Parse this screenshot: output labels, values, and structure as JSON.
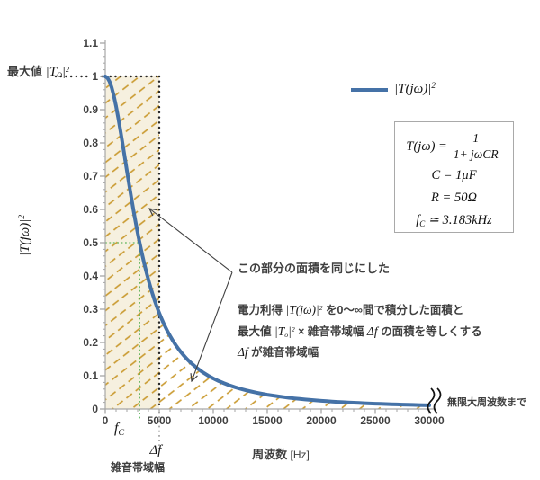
{
  "chart_data": {
    "type": "line",
    "title": "",
    "xlabel": "周波数 [Hz]",
    "ylabel": "|T(jω)|²",
    "x_range_hz": [
      0,
      30000
    ],
    "y_range": [
      0,
      1.1
    ],
    "x_ticks": [
      0,
      5000,
      10000,
      15000,
      20000,
      25000,
      30000
    ],
    "x_minor_tick_step": 1000,
    "y_tick_labels": [
      "1.1",
      "1",
      "0.9",
      "0.8",
      "0.7",
      "0.6",
      "0.5",
      "0.4",
      "0.3",
      "0.2",
      "0.1",
      "0"
    ],
    "y_tick_values": [
      1.1,
      1.0,
      0.9,
      0.8,
      0.7,
      0.6,
      0.5,
      0.4,
      0.3,
      0.2,
      0.1,
      0
    ],
    "y_minor_tick_step": 0.02,
    "grid": false,
    "legend_position": "right-top",
    "series": [
      {
        "name": "|T(jω)|²",
        "formula": "1 / (1 + (f/fc)^2)",
        "fc_hz": 3183.1,
        "sample_points": [
          [
            0,
            1.0
          ],
          [
            1000,
            0.91
          ],
          [
            2000,
            0.717
          ],
          [
            3183,
            0.5
          ],
          [
            4000,
            0.388
          ],
          [
            5000,
            0.288
          ],
          [
            7500,
            0.153
          ],
          [
            10000,
            0.092
          ],
          [
            15000,
            0.043
          ],
          [
            20000,
            0.025
          ],
          [
            25000,
            0.016
          ],
          [
            30000,
            0.011
          ]
        ]
      }
    ],
    "noise_bandwidth_hz": 5000,
    "cutoff_hz": 3183,
    "half_power_level": 0.5,
    "equal_area_rectangle": {
      "x_hz": [
        0,
        5000
      ],
      "y": [
        0,
        1.0
      ]
    }
  },
  "colors": {
    "curve": "#4572a7",
    "hatch": "#c9992e",
    "area_fill": "#f6f0df",
    "guide_green": "#3aa63a",
    "guide_gray": "#8c8c8c",
    "dotted_black": "#262626",
    "axis": "#a6a6a6",
    "text": "#3f3f3f",
    "arrow": "#404040"
  },
  "labels": {
    "max_prefix": "最大値 ",
    "max_math1": "|T",
    "max_sub": "O",
    "max_math2": "|",
    "max_sup": "2",
    "y_title_base": "|T(jω)|",
    "y_title_sup": "2",
    "fc_base": "f",
    "fc_sub": "C",
    "df": "Δf",
    "bandwidth": "雑音帯域幅",
    "x_title": "周波数",
    "x_unit": " [Hz]",
    "infinity": "無限大周波数まで"
  },
  "legend": {
    "base": "|T(jω)|",
    "sup": "2"
  },
  "formula": {
    "lhs": "T(jω) =",
    "num": "1",
    "den": "1+ jωCR",
    "c": "C = 1μF",
    "r": "R = 50Ω",
    "fc_base": "f",
    "fc_sub": "C",
    "fc_rest": " ≃ 3.183kHz"
  },
  "annotation": {
    "callout": "この部分の面積を同じにした",
    "p1_a": "電力利得 ",
    "p1_math": "|T(jω)|",
    "p1_sup": "2",
    "p1_b": " を0～∞間で積分した面積と",
    "p2_a": "最大値 ",
    "p2_math1": "|T",
    "p2_sub": "o",
    "p2_math2": "|",
    "p2_sup": "2",
    "p2_b": " × 雑音帯域幅 ",
    "p2_math3": "Δf",
    "p2_c": " の面積を等しくする",
    "p3_math": "Δf",
    "p3_b": " が雑音帯域幅"
  }
}
